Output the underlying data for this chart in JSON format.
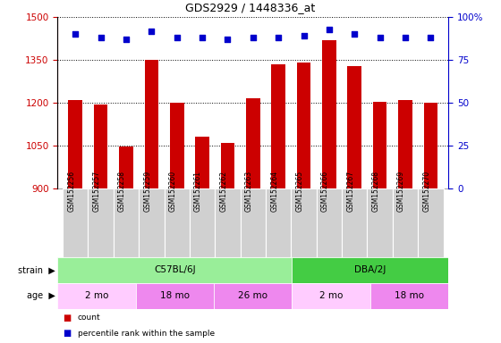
{
  "title": "GDS2929 / 1448336_at",
  "samples": [
    "GSM152256",
    "GSM152257",
    "GSM152258",
    "GSM152259",
    "GSM152260",
    "GSM152261",
    "GSM152262",
    "GSM152263",
    "GSM152264",
    "GSM152265",
    "GSM152266",
    "GSM152267",
    "GSM152268",
    "GSM152269",
    "GSM152270"
  ],
  "counts": [
    1210,
    1195,
    1048,
    1350,
    1200,
    1082,
    1060,
    1215,
    1335,
    1340,
    1420,
    1330,
    1205,
    1210,
    1200
  ],
  "percentile_ranks": [
    90,
    88,
    87,
    92,
    88,
    88,
    87,
    88,
    88,
    89,
    93,
    90,
    88,
    88,
    88
  ],
  "ylim_left": [
    900,
    1500
  ],
  "ylim_right": [
    0,
    100
  ],
  "yticks_left": [
    900,
    1050,
    1200,
    1350,
    1500
  ],
  "yticks_right": [
    0,
    25,
    50,
    75,
    100
  ],
  "bar_color": "#cc0000",
  "dot_color": "#0000cc",
  "grid_color": "#000000",
  "strain_groups": [
    {
      "label": "C57BL/6J",
      "start": 0,
      "end": 9,
      "color": "#99ee99"
    },
    {
      "label": "DBA/2J",
      "start": 9,
      "end": 15,
      "color": "#44cc44"
    }
  ],
  "age_groups": [
    {
      "label": "2 mo",
      "start": 0,
      "end": 3,
      "color": "#ffccff"
    },
    {
      "label": "18 mo",
      "start": 3,
      "end": 6,
      "color": "#ee88ee"
    },
    {
      "label": "26 mo",
      "start": 6,
      "end": 9,
      "color": "#ee88ee"
    },
    {
      "label": "2 mo",
      "start": 9,
      "end": 12,
      "color": "#ffccff"
    },
    {
      "label": "18 mo",
      "start": 12,
      "end": 15,
      "color": "#ee88ee"
    }
  ],
  "legend_items": [
    {
      "label": "count",
      "color": "#cc0000"
    },
    {
      "label": "percentile rank within the sample",
      "color": "#0000cc"
    }
  ]
}
